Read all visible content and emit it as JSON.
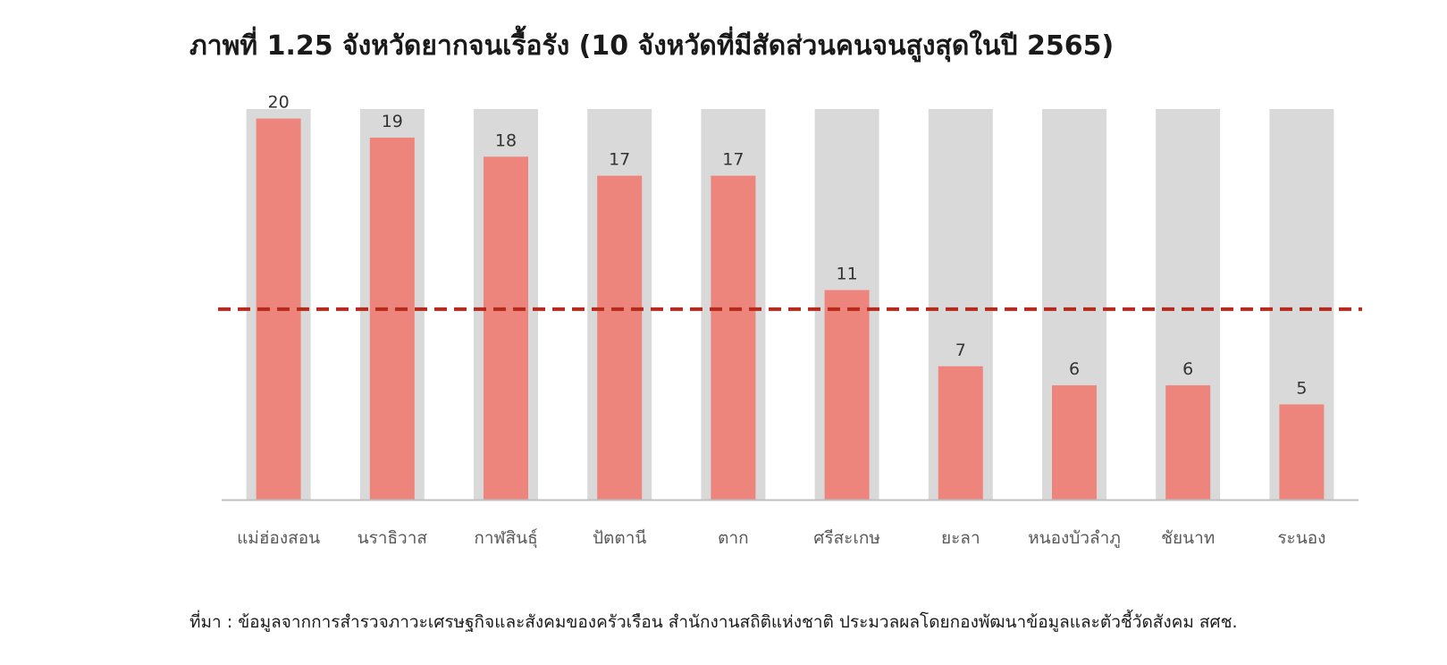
{
  "chart_data": {
    "type": "bar",
    "title": "ภาพที่ 1.25 จังหวัดยากจนเรื้อรัง (10 จังหวัดที่มีสัดส่วนคนจนสูงสุดในปี 2565)",
    "categories": [
      "แม่ฮ่องสอน",
      "นราธิวาส",
      "กาฬสินธุ์",
      "ปัตตานี",
      "ตาก",
      "ศรีสะเกษ",
      "ยะลา",
      "หนองบัวลำภู",
      "ชัยนาท",
      "ระนอง"
    ],
    "values": [
      20,
      19,
      18,
      17,
      17,
      11,
      7,
      6,
      6,
      5
    ],
    "data_labels": [
      "20",
      "19",
      "18",
      "17",
      "17",
      "11",
      "7",
      "6",
      "6",
      "5"
    ],
    "background_bar_max": 20.5,
    "reference_line": 10,
    "ylim": [
      0,
      20.5
    ],
    "xlabel": "",
    "ylabel": "",
    "grid": false,
    "legend": "none",
    "colors": {
      "bar": "#ee857c",
      "background_bar": "#d9d9d9",
      "reference_line": "#b52a1c",
      "axis": "#bfbfbf",
      "label_text": "#333333",
      "category_text": "#595959"
    }
  },
  "source": "ที่มา : ข้อมูลจากการสำรวจภาวะเศรษฐกิจและสังคมของครัวเรือน สำนักงานสถิติแห่งชาติ ประมวลผลโดยกองพัฒนาข้อมูลและตัวชี้วัดสังคม สศช."
}
